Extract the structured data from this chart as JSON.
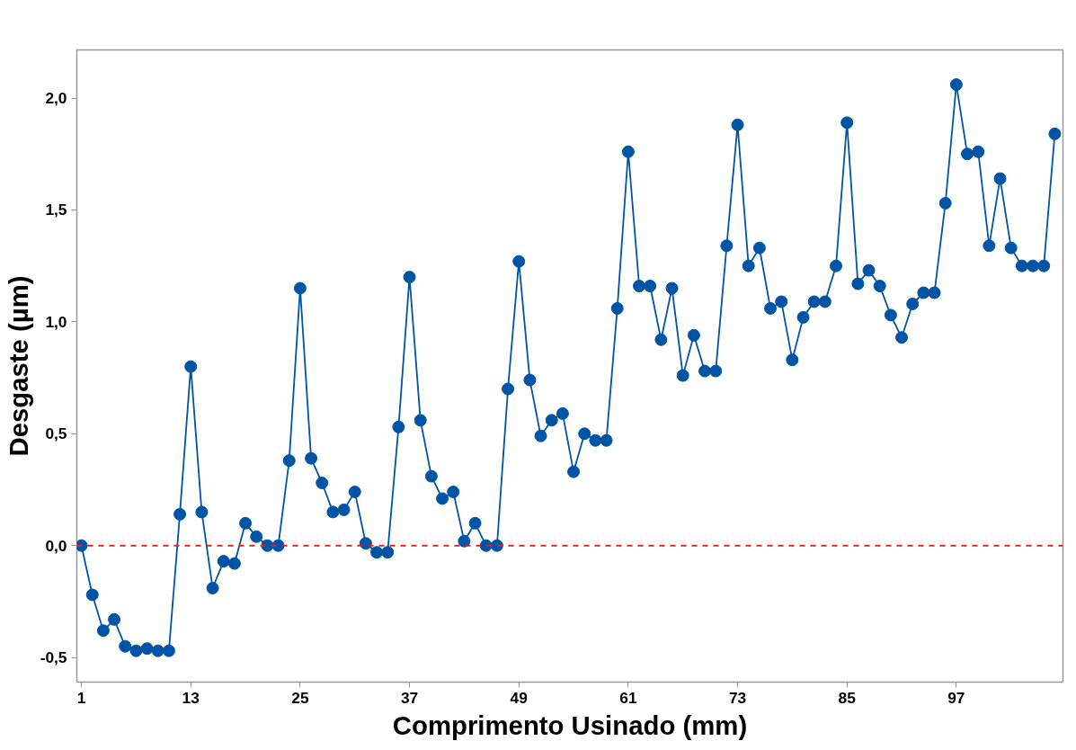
{
  "chart_data": {
    "type": "line",
    "xlabel": "Comprimento Usinado (mm)",
    "ylabel": "Desgaste (µm)",
    "x": [
      1,
      2.2,
      3.4,
      4.6,
      5.8,
      7,
      8.2,
      9.4,
      10.6,
      11.8,
      13,
      14.2,
      15.4,
      16.6,
      17.8,
      19,
      20.2,
      21.4,
      22.6,
      23.8,
      25,
      26.2,
      27.4,
      28.6,
      29.8,
      31,
      32.2,
      33.4,
      34.6,
      35.8,
      37,
      38.2,
      39.4,
      40.6,
      41.8,
      43,
      44.2,
      45.4,
      46.6,
      47.8,
      49,
      50.2,
      51.4,
      52.6,
      53.8,
      55,
      56.2,
      57.4,
      58.6,
      59.8,
      61,
      62.2,
      63.4,
      64.6,
      65.8,
      67,
      68.2,
      69.4,
      70.6,
      71.8,
      73,
      74.2,
      75.4,
      76.6,
      77.8,
      79,
      80.2,
      81.4,
      82.6,
      83.8,
      85,
      86.2,
      87.4,
      88.6,
      89.8,
      91,
      92.2,
      93.4,
      94.6,
      95.8,
      97,
      98.2,
      99.4,
      100.6,
      101.8,
      103,
      104.2,
      105.4,
      106.6,
      107.8
    ],
    "series": [
      {
        "color": "#0054a6",
        "values": [
          0,
          -0.22,
          -0.38,
          -0.33,
          -0.45,
          -0.47,
          -0.46,
          -0.47,
          -0.47,
          0.14,
          0.8,
          0.15,
          -0.19,
          -0.07,
          -0.08,
          0.1,
          0.04,
          0,
          0,
          0.38,
          1.15,
          0.39,
          0.28,
          0.15,
          0.16,
          0.24,
          0.01,
          -0.03,
          -0.03,
          0.53,
          1.2,
          0.56,
          0.31,
          0.21,
          0.24,
          0.02,
          0.1,
          0,
          0,
          0.7,
          1.27,
          0.74,
          0.49,
          0.56,
          0.59,
          0.33,
          0.5,
          0.47,
          0.47,
          1.06,
          1.76,
          1.16,
          1.16,
          0.92,
          1.15,
          0.76,
          0.94,
          0.78,
          0.78,
          1.34,
          1.88,
          1.25,
          1.33,
          1.06,
          1.09,
          0.83,
          1.02,
          1.09,
          1.09,
          1.25,
          1.89,
          1.17,
          1.23,
          1.16,
          1.03,
          0.93,
          1.08,
          1.13,
          1.13,
          1.53,
          2.06,
          1.75,
          1.76,
          1.34,
          1.64,
          1.33,
          1.25,
          1.25,
          1.25,
          1.84
        ]
      }
    ],
    "xlim": [
      0.5,
      108.7
    ],
    "ylim": [
      -0.61,
      2.215
    ],
    "xticks": [
      1,
      13,
      25,
      37,
      49,
      61,
      73,
      85,
      97
    ],
    "yticks": [
      {
        "value": -0.5,
        "label": "-0,5"
      },
      {
        "value": 0,
        "label": "0,0"
      },
      {
        "value": 0.5,
        "label": "0,5"
      },
      {
        "value": 1,
        "label": "1,0"
      },
      {
        "value": 1.5,
        "label": "1,5"
      },
      {
        "value": 2,
        "label": "2,0"
      }
    ],
    "ref_lines": [
      {
        "axis": "y",
        "value": 0,
        "color": "#d62728",
        "line_style": "dashed"
      }
    ],
    "grid": false,
    "marker": "circle",
    "line_style": "solid"
  }
}
